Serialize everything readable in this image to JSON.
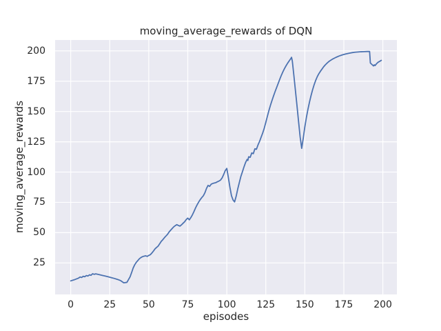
{
  "colors": {
    "axes_background": "#EAEAF2",
    "grid": "#FFFFFF",
    "line": "#4C72B0",
    "text": "#262626",
    "figure_background": "#FFFFFF"
  },
  "chart_data": {
    "type": "line",
    "title": "moving_average_rewards of DQN",
    "xlabel": "episodes",
    "ylabel": "moving_average_rewards",
    "xlim": [
      -10,
      209
    ],
    "ylim": [
      -1,
      209
    ],
    "x_ticks": [
      0,
      25,
      50,
      75,
      100,
      125,
      150,
      175,
      200
    ],
    "y_ticks": [
      25,
      50,
      75,
      100,
      125,
      150,
      175,
      200
    ],
    "grid": true,
    "legend": false,
    "line_color": "#4C72B0",
    "line_width": 1.8,
    "series": [
      {
        "name": "moving_average_rewards",
        "points": [
          [
            0,
            10.2
          ],
          [
            2,
            11
          ],
          [
            4,
            12
          ],
          [
            5,
            12.5
          ],
          [
            6,
            13.4
          ],
          [
            7,
            13
          ],
          [
            8,
            14
          ],
          [
            9,
            13.6
          ],
          [
            10,
            14.6
          ],
          [
            11,
            14.2
          ],
          [
            12,
            15.2
          ],
          [
            13,
            14.8
          ],
          [
            14,
            16.1
          ],
          [
            15,
            15.6
          ],
          [
            16,
            16
          ],
          [
            18,
            15.4
          ],
          [
            20,
            14.8
          ],
          [
            22,
            14.2
          ],
          [
            24,
            13.6
          ],
          [
            26,
            12.9
          ],
          [
            28,
            12.2
          ],
          [
            30,
            11.4
          ],
          [
            32,
            10.4
          ],
          [
            34,
            8.6
          ],
          [
            36,
            9
          ],
          [
            38,
            13.5
          ],
          [
            39,
            17
          ],
          [
            40,
            20.8
          ],
          [
            41,
            23.5
          ],
          [
            42,
            25.5
          ],
          [
            43,
            27
          ],
          [
            44,
            28.5
          ],
          [
            45,
            29.5
          ],
          [
            46,
            30.2
          ],
          [
            47,
            30.6
          ],
          [
            48,
            30.9
          ],
          [
            49,
            30.4
          ],
          [
            50,
            31.2
          ],
          [
            51,
            31.8
          ],
          [
            52,
            33.2
          ],
          [
            53,
            34.8
          ],
          [
            54,
            36.6
          ],
          [
            55,
            37.8
          ],
          [
            56,
            38.9
          ],
          [
            57,
            40.8
          ],
          [
            58,
            42.8
          ],
          [
            59,
            44.2
          ],
          [
            60,
            45.8
          ],
          [
            61,
            47.2
          ],
          [
            62,
            48.6
          ],
          [
            63,
            50.5
          ],
          [
            64,
            52
          ],
          [
            65,
            53.4
          ],
          [
            66,
            54.8
          ],
          [
            67,
            55.8
          ],
          [
            68,
            56.6
          ],
          [
            69,
            55.9
          ],
          [
            70,
            55.4
          ],
          [
            71,
            56.5
          ],
          [
            72,
            57.8
          ],
          [
            73,
            59
          ],
          [
            74,
            60.8
          ],
          [
            75,
            62
          ],
          [
            76,
            60.6
          ],
          [
            77,
            62.5
          ],
          [
            78,
            64.8
          ],
          [
            79,
            67.5
          ],
          [
            80,
            70.5
          ],
          [
            81,
            73
          ],
          [
            82,
            75.3
          ],
          [
            83,
            77.3
          ],
          [
            84,
            79
          ],
          [
            85,
            80.5
          ],
          [
            86,
            83
          ],
          [
            87,
            86.5
          ],
          [
            88,
            89
          ],
          [
            89,
            88.2
          ],
          [
            90,
            90
          ],
          [
            91,
            90.6
          ],
          [
            92,
            91
          ],
          [
            93,
            91.3
          ],
          [
            94,
            92
          ],
          [
            95,
            92.6
          ],
          [
            96,
            93.4
          ],
          [
            97,
            95.2
          ],
          [
            98,
            98
          ],
          [
            99,
            101.2
          ],
          [
            100,
            103
          ],
          [
            101,
            95.5
          ],
          [
            102,
            87.5
          ],
          [
            103,
            80.5
          ],
          [
            104,
            77
          ],
          [
            105,
            75.4
          ],
          [
            106,
            80
          ],
          [
            107,
            86
          ],
          [
            108,
            91.2
          ],
          [
            109,
            96.3
          ],
          [
            110,
            100.2
          ],
          [
            111,
            104.2
          ],
          [
            112,
            107.8
          ],
          [
            113,
            110.4
          ],
          [
            113.5,
            109.6
          ],
          [
            114,
            112.6
          ],
          [
            115,
            112.2
          ],
          [
            116,
            115.8
          ],
          [
            117,
            115.2
          ],
          [
            118,
            119.2
          ],
          [
            119,
            118.8
          ],
          [
            120,
            122.4
          ],
          [
            121,
            125.3
          ],
          [
            122,
            128.8
          ],
          [
            123,
            132.2
          ],
          [
            124,
            136.2
          ],
          [
            125,
            141
          ],
          [
            126,
            146
          ],
          [
            127,
            150.8
          ],
          [
            128,
            155.2
          ],
          [
            129,
            159.2
          ],
          [
            130,
            163
          ],
          [
            131,
            166.6
          ],
          [
            132,
            170
          ],
          [
            133,
            173.4
          ],
          [
            134,
            176.8
          ],
          [
            135,
            180
          ],
          [
            136,
            182.9
          ],
          [
            137,
            185.5
          ],
          [
            138,
            187.8
          ],
          [
            139,
            189.9
          ],
          [
            140,
            191.8
          ],
          [
            141,
            193.6
          ],
          [
            141.5,
            194.7
          ],
          [
            142,
            191.5
          ],
          [
            143,
            179.5
          ],
          [
            144,
            167
          ],
          [
            145,
            154.5
          ],
          [
            146,
            141.5
          ],
          [
            147,
            129
          ],
          [
            148,
            119.6
          ],
          [
            149,
            128
          ],
          [
            150,
            137.2
          ],
          [
            151,
            145
          ],
          [
            152,
            151.8
          ],
          [
            153,
            157.8
          ],
          [
            154,
            163.2
          ],
          [
            155,
            168
          ],
          [
            156,
            172.2
          ],
          [
            157,
            175.8
          ],
          [
            158,
            178.8
          ],
          [
            159,
            181.2
          ],
          [
            160,
            183.2
          ],
          [
            161,
            185
          ],
          [
            162,
            186.8
          ],
          [
            163,
            188.3
          ],
          [
            164,
            189.6
          ],
          [
            165,
            190.8
          ],
          [
            166,
            191.8
          ],
          [
            168,
            193.4
          ],
          [
            170,
            194.7
          ],
          [
            172,
            195.8
          ],
          [
            174,
            196.7
          ],
          [
            176,
            197.4
          ],
          [
            178,
            198
          ],
          [
            180,
            198.5
          ],
          [
            182,
            198.9
          ],
          [
            184,
            199.1
          ],
          [
            186,
            199.3
          ],
          [
            188,
            199.4
          ],
          [
            190,
            199.5
          ],
          [
            191.5,
            199.5
          ],
          [
            192,
            190
          ],
          [
            193,
            188.8
          ],
          [
            194,
            187.6
          ],
          [
            194.5,
            188.5
          ],
          [
            195,
            187.9
          ],
          [
            196,
            189.5
          ],
          [
            197,
            190.7
          ],
          [
            198,
            191.4
          ],
          [
            199,
            192.2
          ]
        ]
      }
    ]
  }
}
